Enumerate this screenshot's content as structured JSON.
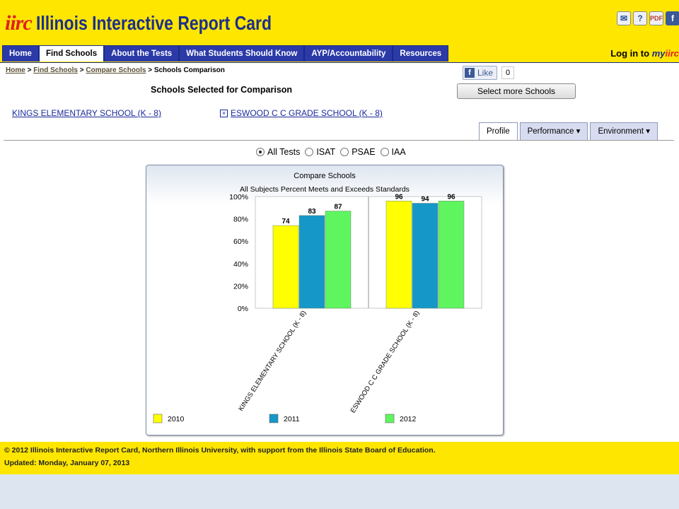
{
  "header": {
    "logo_mark": "iirc",
    "title": "Illinois Interactive Report Card",
    "icons": [
      "email-icon",
      "help-icon",
      "pdf-icon",
      "facebook-icon"
    ]
  },
  "nav": {
    "tabs": [
      {
        "label": "Home",
        "active": false
      },
      {
        "label": "Find Schools",
        "active": true
      },
      {
        "label": "About the Tests",
        "active": false
      },
      {
        "label": "What Students Should Know",
        "active": false
      },
      {
        "label": "AYP/Accountability",
        "active": false
      },
      {
        "label": "Resources",
        "active": false
      }
    ],
    "login_prefix": "Log in to",
    "login_my": "my",
    "login_brand": "iirc"
  },
  "breadcrumb": {
    "home": "Home",
    "sep": ">",
    "find_schools": "Find Schools",
    "compare_schools": "Compare Schools",
    "current": "Schools Comparison"
  },
  "fb_like": {
    "label": "Like",
    "count": "0"
  },
  "selection": {
    "title": "Schools Selected for Comparison",
    "select_more": "Select more Schools",
    "school_a": "KINGS ELEMENTARY SCHOOL (K - 8)",
    "school_b": "ESWOOD C C GRADE SCHOOL (K - 8)"
  },
  "sub_tabs": {
    "profile": "Profile",
    "performance": "Performance",
    "environment": "Environment"
  },
  "tests": {
    "options": [
      "All Tests",
      "ISAT",
      "PSAE",
      "IAA"
    ],
    "selected": "All Tests"
  },
  "chart_data": {
    "type": "bar",
    "title": "Compare Schools",
    "subtitle": "All Subjects Percent Meets and Exceeds Standards",
    "categories": [
      "KINGS ELEMENTARY SCHOOL (K - 8)",
      "ESWOOD C C GRADE SCHOOL (K - 8)"
    ],
    "series": [
      {
        "name": "2010",
        "values": [
          74,
          96
        ],
        "color": "#ffff00"
      },
      {
        "name": "2011",
        "values": [
          83,
          94
        ],
        "color": "#1597c8"
      },
      {
        "name": "2012",
        "values": [
          87,
          96
        ],
        "color": "#5ff55f"
      }
    ],
    "yticks": [
      "0%",
      "20%",
      "40%",
      "60%",
      "80%",
      "100%"
    ],
    "ylim": [
      0,
      100
    ],
    "legend_position": "bottom",
    "grid": false
  },
  "footer": {
    "copyright": "© 2012 Illinois Interactive Report Card, Northern Illinois University, with support from the Illinois State Board of Education.",
    "updated": "Updated: Monday, January 07, 2013"
  }
}
